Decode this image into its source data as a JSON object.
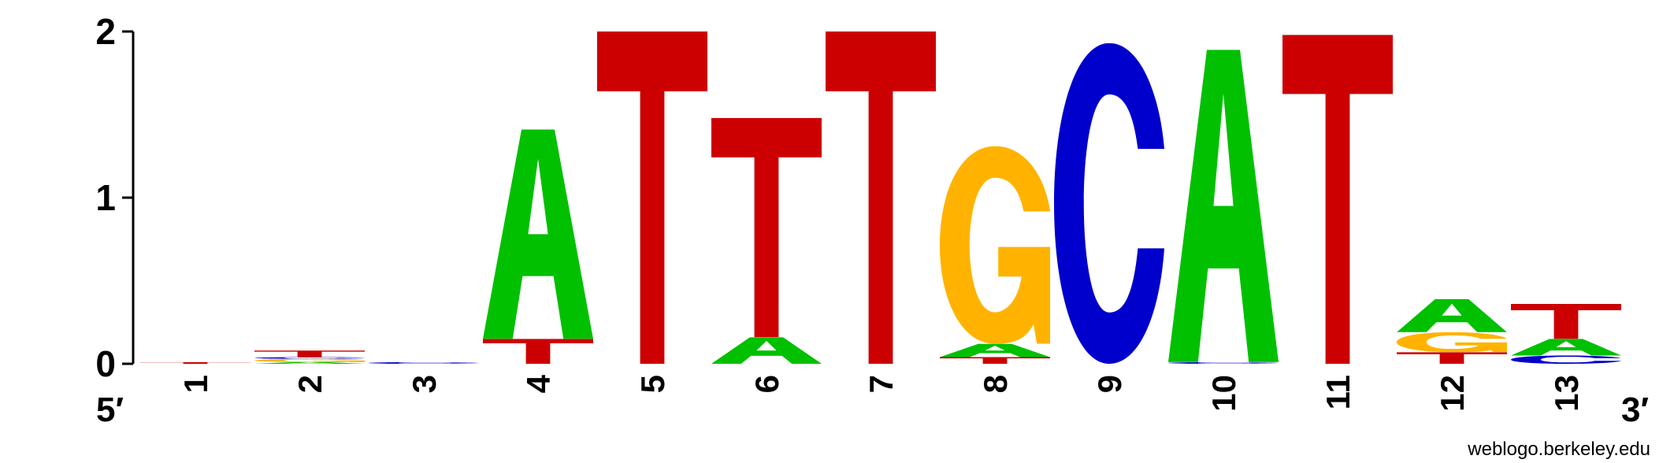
{
  "chart_data": {
    "type": "sequence-logo",
    "ylim": [
      0,
      2
    ],
    "yticks": [
      "0",
      "1",
      "2"
    ],
    "x": [
      "1",
      "2",
      "3",
      "4",
      "5",
      "6",
      "7",
      "8",
      "9",
      "10",
      "11",
      "12",
      "13"
    ],
    "end_labels": {
      "left": "5′",
      "right": "3′"
    },
    "footer": "weblogo.berkeley.edu",
    "colors": {
      "A": "#00c000",
      "C": "#0000cc",
      "G": "#ffb300",
      "T": "#cc0000"
    },
    "positions": [
      {
        "pos": "1",
        "letters": [
          {
            "base": "T",
            "height": 0.01
          }
        ]
      },
      {
        "pos": "2",
        "letters": [
          {
            "base": "A",
            "height": 0.01
          },
          {
            "base": "G",
            "height": 0.02
          },
          {
            "base": "C",
            "height": 0.01
          },
          {
            "base": "T",
            "height": 0.04
          }
        ]
      },
      {
        "pos": "3",
        "letters": [
          {
            "base": "C",
            "height": 0.01
          }
        ]
      },
      {
        "pos": "4",
        "letters": [
          {
            "base": "T",
            "height": 0.15
          },
          {
            "base": "A",
            "height": 1.26
          }
        ]
      },
      {
        "pos": "5",
        "letters": [
          {
            "base": "T",
            "height": 2.0
          }
        ]
      },
      {
        "pos": "6",
        "letters": [
          {
            "base": "A",
            "height": 0.16
          },
          {
            "base": "T",
            "height": 1.32
          }
        ]
      },
      {
        "pos": "7",
        "letters": [
          {
            "base": "T",
            "height": 2.0
          }
        ]
      },
      {
        "pos": "8",
        "letters": [
          {
            "base": "T",
            "height": 0.04
          },
          {
            "base": "A",
            "height": 0.08
          },
          {
            "base": "G",
            "height": 1.19
          }
        ]
      },
      {
        "pos": "9",
        "letters": [
          {
            "base": "C",
            "height": 1.93
          }
        ]
      },
      {
        "pos": "10",
        "letters": [
          {
            "base": "C",
            "height": 0.01
          },
          {
            "base": "A",
            "height": 1.88
          }
        ]
      },
      {
        "pos": "11",
        "letters": [
          {
            "base": "T",
            "height": 1.98
          }
        ]
      },
      {
        "pos": "12",
        "letters": [
          {
            "base": "T",
            "height": 0.07
          },
          {
            "base": "G",
            "height": 0.12
          },
          {
            "base": "A",
            "height": 0.2
          }
        ]
      },
      {
        "pos": "13",
        "letters": [
          {
            "base": "C",
            "height": 0.05
          },
          {
            "base": "A",
            "height": 0.1
          },
          {
            "base": "T",
            "height": 0.21
          }
        ]
      }
    ]
  }
}
